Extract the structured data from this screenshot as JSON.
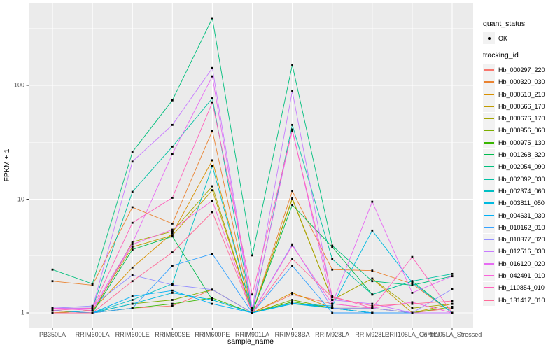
{
  "chart": {
    "type": "line",
    "xlabel": "sample_name",
    "ylabel": "FPKM + 1",
    "y_scale": "log10",
    "y_ticks": [
      1,
      10,
      100
    ],
    "y_tick_labels": [
      "1",
      "10",
      "100"
    ],
    "y_minor_gridlines": [
      3.1623,
      31.623,
      316.23
    ],
    "panel_bg": "#EBEBEB",
    "gridline_color": "#FFFFFF",
    "point_color": "#000000",
    "categories": [
      "PB350LA",
      "RRIM600LA",
      "RRIM600LE",
      "RRIM600SE",
      "RRIM600PE",
      "RRIM901LA",
      "RRIM928BA",
      "RRIM928LA",
      "RRIM928LE",
      "RRII105LA_Control",
      "RRII105LA_Stressed"
    ],
    "chart_data": {
      "note": "FPKM+1 per tracking_id per sample_name, log10 y axis, values estimated from gridlines",
      "series_reference": "see chart.series"
    },
    "series": [
      {
        "name": "Hb_000297_220",
        "color": "#F8766D",
        "values": [
          1.05,
          1.0,
          1.1,
          1.15,
          1.6,
          1.0,
          1.45,
          1.2,
          1.1,
          1.0,
          1.1
        ]
      },
      {
        "name": "Hb_000320_030",
        "color": "#EA8331",
        "values": [
          1.9,
          1.75,
          8.5,
          6.1,
          40,
          1.0,
          11.8,
          2.4,
          2.35,
          1.8,
          1.0
        ]
      },
      {
        "name": "Hb_000510_210",
        "color": "#D89000",
        "values": [
          1.0,
          1.05,
          2.5,
          5.0,
          22,
          1.0,
          1.5,
          1.1,
          1.0,
          1.0,
          1.0
        ]
      },
      {
        "name": "Hb_000566_170",
        "color": "#C09B00",
        "values": [
          1.0,
          1.05,
          3.8,
          4.8,
          12,
          1.0,
          10.2,
          1.3,
          2.0,
          1.0,
          1.2
        ]
      },
      {
        "name": "Hb_000676_170",
        "color": "#A3A500",
        "values": [
          1.0,
          1.0,
          4.2,
          5.2,
          13,
          1.0,
          10.0,
          1.3,
          2.0,
          1.1,
          1.2
        ]
      },
      {
        "name": "Hb_000956_060",
        "color": "#7CAE00",
        "values": [
          1.0,
          1.0,
          1.2,
          1.3,
          1.6,
          1.0,
          1.3,
          1.1,
          1.1,
          1.0,
          1.13
        ]
      },
      {
        "name": "Hb_000975_130",
        "color": "#39B600",
        "values": [
          1.0,
          1.0,
          1.1,
          1.2,
          1.35,
          1.0,
          1.25,
          1.1,
          1.0,
          1.0,
          1.0
        ]
      },
      {
        "name": "Hb_001268_320",
        "color": "#00BB4E",
        "values": [
          1.0,
          1.0,
          3.6,
          4.7,
          1.3,
          1.0,
          8.9,
          3.8,
          1.45,
          1.9,
          1.0
        ]
      },
      {
        "name": "Hb_002054_090",
        "color": "#00BF7D",
        "values": [
          2.4,
          1.8,
          26,
          74,
          390,
          3.2,
          151,
          3.9,
          1.9,
          1.75,
          2.1
        ]
      },
      {
        "name": "Hb_002092_030",
        "color": "#00C1A3",
        "values": [
          1.1,
          1.1,
          11.6,
          29,
          77,
          1.0,
          45,
          2.97,
          1.45,
          1.9,
          2.2
        ]
      },
      {
        "name": "Hb_002374_060",
        "color": "#00BFC4",
        "values": [
          1.0,
          1.0,
          1.3,
          1.8,
          19.6,
          1.0,
          1.2,
          1.1,
          1.0,
          1.0,
          1.0
        ]
      },
      {
        "name": "Hb_003811_050",
        "color": "#00BAE0",
        "values": [
          1.0,
          1.0,
          1.2,
          1.5,
          1.3,
          1.0,
          1.2,
          1.15,
          5.3,
          1.85,
          1.0
        ]
      },
      {
        "name": "Hb_004631_030",
        "color": "#00B0F6",
        "values": [
          1.05,
          1.0,
          1.4,
          1.57,
          1.2,
          1.0,
          1.22,
          1.1,
          1.0,
          1.0,
          1.0
        ]
      },
      {
        "name": "Hb_010162_010",
        "color": "#35A2FF",
        "values": [
          1.0,
          1.0,
          1.1,
          2.6,
          3.3,
          1.0,
          2.6,
          1.0,
          1.0,
          1.0,
          1.0
        ]
      },
      {
        "name": "Hb_010377_020",
        "color": "#9590FF",
        "values": [
          1.1,
          1.15,
          2.15,
          1.76,
          1.6,
          1.0,
          4.0,
          1.1,
          1.1,
          1.0,
          1.62
        ]
      },
      {
        "name": "Hb_012516_030",
        "color": "#C77CFF",
        "values": [
          1.1,
          1.1,
          21.4,
          45,
          142,
          1.1,
          89,
          1.3,
          1.2,
          1.0,
          1.0
        ]
      },
      {
        "name": "Hb_016120_020",
        "color": "#E76BF3",
        "values": [
          1.1,
          1.1,
          4.1,
          25,
          120,
          1.05,
          41,
          1.2,
          9.5,
          1.5,
          2.1
        ]
      },
      {
        "name": "Hb_042491_010",
        "color": "#FA62DB",
        "values": [
          1.1,
          1.05,
          4.0,
          5.4,
          9.7,
          1.0,
          3.9,
          1.2,
          1.1,
          1.24,
          1.0
        ]
      },
      {
        "name": "Hb_110854_010",
        "color": "#FF62BC",
        "values": [
          1.05,
          1.1,
          6.2,
          10.3,
          71,
          1.45,
          40,
          1.4,
          1.1,
          3.1,
          1.0
        ]
      },
      {
        "name": "Hb_131417_010",
        "color": "#FF6A98",
        "values": [
          1.0,
          1.0,
          1.9,
          3.4,
          7.7,
          1.0,
          2.98,
          1.37,
          1.15,
          1.2,
          1.27
        ]
      }
    ]
  },
  "legend": {
    "quant_status_title": "quant_status",
    "quant_status_items": [
      {
        "label": "OK",
        "symbol": "point"
      }
    ],
    "tracking_id_title": "tracking_id"
  }
}
